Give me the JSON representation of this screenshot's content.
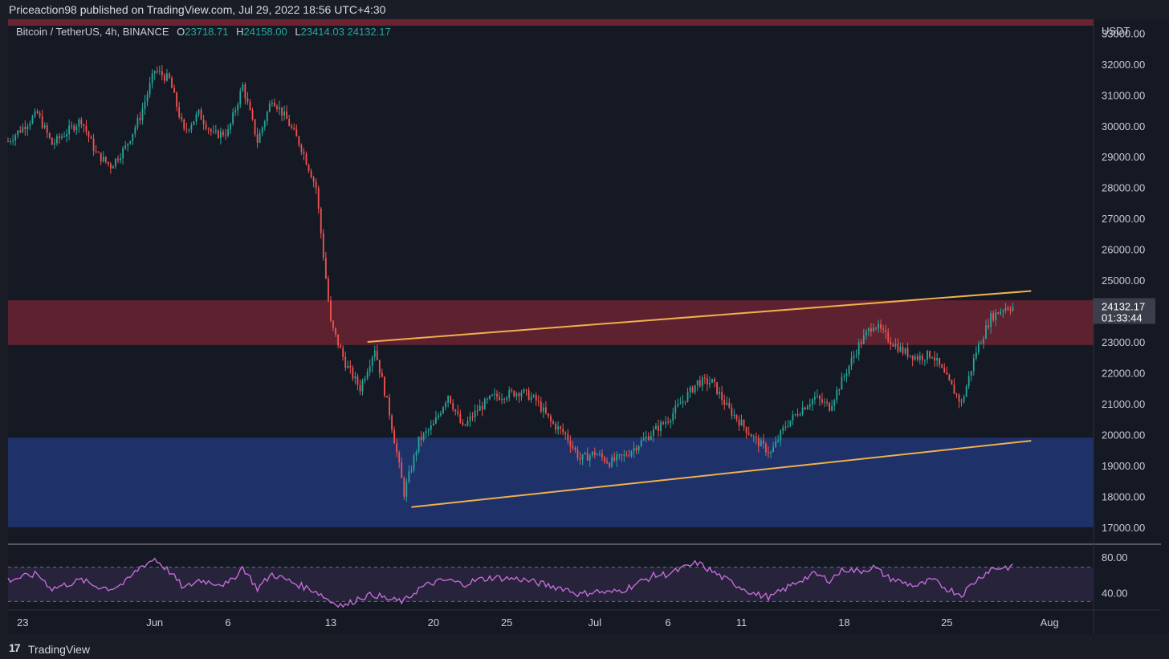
{
  "header": {
    "published_text": "Priceaction98 published on TradingView.com, Jul 29, 2022 18:56 UTC+4:30"
  },
  "legend": {
    "symbol": "Bitcoin / TetherUS, 4h, BINANCE",
    "open_label": "O",
    "open_value": "23718.71",
    "high_label": "H",
    "high_value": "24158.00",
    "low_label": "L",
    "low_value": "23414.03",
    "close_value": "24132.17"
  },
  "footer": {
    "logo_glyph": "17",
    "brand": "TradingView"
  },
  "colors": {
    "up": "#26a69a",
    "down": "#ef5350",
    "resistance_zone": "#6b2331",
    "support_zone": "#1f3470",
    "trendline": "#f0b04c",
    "rsi_line": "#c46bd8",
    "rsi_band": "#2a2540",
    "price_label_bg": "#3b3f4b"
  },
  "chart_data": {
    "type": "candlestick",
    "price_axis": {
      "currency": "USDT",
      "ticks": [
        "33000.00",
        "32000.00",
        "31000.00",
        "30000.00",
        "29000.00",
        "28000.00",
        "27000.00",
        "26000.00",
        "25000.00",
        "24000.00",
        "23000.00",
        "22000.00",
        "21000.00",
        "20000.00",
        "19000.00",
        "18000.00",
        "17000.00"
      ],
      "range": [
        16500,
        33400
      ]
    },
    "time_axis": {
      "ticks": [
        "23",
        "Jun",
        "6",
        "13",
        "20",
        "25",
        "Jul",
        "6",
        "11",
        "18",
        "25",
        "Aug"
      ],
      "range": [
        "2022-05-22",
        "2022-08-04"
      ]
    },
    "current_price": {
      "value": "24132.17",
      "countdown": "01:33:44"
    },
    "zones": [
      {
        "name": "resistance",
        "from": 22900,
        "to": 24350
      },
      {
        "name": "support",
        "from": 17000,
        "to": 19900
      }
    ],
    "trendlines": [
      {
        "points": [
          [
            "2022-06-15T12:00",
            23000
          ],
          [
            "2022-07-30T18:00",
            24650
          ]
        ]
      },
      {
        "points": [
          [
            "2022-06-18T12:00",
            17650
          ],
          [
            "2022-07-30T18:00",
            19800
          ]
        ]
      }
    ],
    "price_path": [
      [
        "2022-05-22",
        29500
      ],
      [
        "2022-05-24",
        30400
      ],
      [
        "2022-05-25",
        29400
      ],
      [
        "2022-05-27",
        30200
      ],
      [
        "2022-05-28",
        29100
      ],
      [
        "2022-05-29",
        28700
      ],
      [
        "2022-05-30",
        29300
      ],
      [
        "2022-05-31",
        30300
      ],
      [
        "2022-06-01",
        31800
      ],
      [
        "2022-06-02",
        31500
      ],
      [
        "2022-06-03",
        29800
      ],
      [
        "2022-06-04",
        30400
      ],
      [
        "2022-06-05",
        29700
      ],
      [
        "2022-06-06",
        29800
      ],
      [
        "2022-06-07",
        31300
      ],
      [
        "2022-06-08",
        29500
      ],
      [
        "2022-06-09",
        30900
      ],
      [
        "2022-06-10",
        30200
      ],
      [
        "2022-06-11",
        29300
      ],
      [
        "2022-06-12",
        28000
      ],
      [
        "2022-06-13",
        23600
      ],
      [
        "2022-06-14",
        22300
      ],
      [
        "2022-06-15",
        21500
      ],
      [
        "2022-06-16",
        22800
      ],
      [
        "2022-06-17",
        20700
      ],
      [
        "2022-06-18",
        18100
      ],
      [
        "2022-06-19",
        19800
      ],
      [
        "2022-06-20",
        20300
      ],
      [
        "2022-06-21",
        21300
      ],
      [
        "2022-06-22",
        20200
      ],
      [
        "2022-06-23",
        20800
      ],
      [
        "2022-06-24",
        21200
      ],
      [
        "2022-06-26",
        21400
      ],
      [
        "2022-06-27",
        21100
      ],
      [
        "2022-06-28",
        20400
      ],
      [
        "2022-06-29",
        20000
      ],
      [
        "2022-06-30",
        19200
      ],
      [
        "2022-07-01",
        19400
      ],
      [
        "2022-07-02",
        19100
      ],
      [
        "2022-07-03",
        19300
      ],
      [
        "2022-07-05",
        20100
      ],
      [
        "2022-07-06",
        20500
      ],
      [
        "2022-07-08",
        21700
      ],
      [
        "2022-07-09",
        21700
      ],
      [
        "2022-07-10",
        20900
      ],
      [
        "2022-07-12",
        19800
      ],
      [
        "2022-07-13",
        19400
      ],
      [
        "2022-07-14",
        20300
      ],
      [
        "2022-07-15",
        20800
      ],
      [
        "2022-07-16",
        21200
      ],
      [
        "2022-07-17",
        20900
      ],
      [
        "2022-07-18",
        21900
      ],
      [
        "2022-07-19",
        22900
      ],
      [
        "2022-07-20",
        23600
      ],
      [
        "2022-07-21",
        23100
      ],
      [
        "2022-07-22",
        22700
      ],
      [
        "2022-07-23",
        22500
      ],
      [
        "2022-07-24",
        22600
      ],
      [
        "2022-07-25",
        21800
      ],
      [
        "2022-07-26",
        21000
      ],
      [
        "2022-07-27",
        22700
      ],
      [
        "2022-07-28",
        23800
      ],
      [
        "2022-07-29",
        24132
      ]
    ],
    "rsi": {
      "ticks": [
        "80.00",
        "40.00"
      ],
      "range": [
        20,
        95
      ],
      "bands": [
        70,
        30
      ],
      "path": [
        [
          "2022-05-22",
          55
        ],
        [
          "2022-05-24",
          62
        ],
        [
          "2022-05-25",
          45
        ],
        [
          "2022-05-27",
          55
        ],
        [
          "2022-05-28",
          48
        ],
        [
          "2022-05-29",
          45
        ],
        [
          "2022-05-30",
          52
        ],
        [
          "2022-05-31",
          70
        ],
        [
          "2022-06-01",
          80
        ],
        [
          "2022-06-02",
          65
        ],
        [
          "2022-06-03",
          45
        ],
        [
          "2022-06-04",
          55
        ],
        [
          "2022-06-05",
          52
        ],
        [
          "2022-06-06",
          50
        ],
        [
          "2022-06-07",
          70
        ],
        [
          "2022-06-08",
          45
        ],
        [
          "2022-06-09",
          62
        ],
        [
          "2022-06-10",
          55
        ],
        [
          "2022-06-11",
          48
        ],
        [
          "2022-06-12",
          42
        ],
        [
          "2022-06-13",
          30
        ],
        [
          "2022-06-14",
          25
        ],
        [
          "2022-06-15",
          35
        ],
        [
          "2022-06-16",
          38
        ],
        [
          "2022-06-17",
          32
        ],
        [
          "2022-06-18",
          30
        ],
        [
          "2022-06-19",
          45
        ],
        [
          "2022-06-20",
          52
        ],
        [
          "2022-06-21",
          55
        ],
        [
          "2022-06-22",
          50
        ],
        [
          "2022-06-23",
          55
        ],
        [
          "2022-06-24",
          58
        ],
        [
          "2022-06-26",
          56
        ],
        [
          "2022-06-27",
          52
        ],
        [
          "2022-06-28",
          48
        ],
        [
          "2022-06-29",
          45
        ],
        [
          "2022-06-30",
          38
        ],
        [
          "2022-07-01",
          42
        ],
        [
          "2022-07-02",
          40
        ],
        [
          "2022-07-03",
          44
        ],
        [
          "2022-07-05",
          60
        ],
        [
          "2022-07-06",
          62
        ],
        [
          "2022-07-08",
          75
        ],
        [
          "2022-07-09",
          65
        ],
        [
          "2022-07-10",
          55
        ],
        [
          "2022-07-12",
          38
        ],
        [
          "2022-07-13",
          35
        ],
        [
          "2022-07-14",
          45
        ],
        [
          "2022-07-15",
          55
        ],
        [
          "2022-07-16",
          62
        ],
        [
          "2022-07-17",
          55
        ],
        [
          "2022-07-18",
          68
        ],
        [
          "2022-07-19",
          65
        ],
        [
          "2022-07-20",
          70
        ],
        [
          "2022-07-21",
          58
        ],
        [
          "2022-07-22",
          52
        ],
        [
          "2022-07-23",
          48
        ],
        [
          "2022-07-24",
          55
        ],
        [
          "2022-07-25",
          45
        ],
        [
          "2022-07-26",
          38
        ],
        [
          "2022-07-27",
          55
        ],
        [
          "2022-07-28",
          68
        ],
        [
          "2022-07-29",
          70
        ]
      ]
    }
  }
}
